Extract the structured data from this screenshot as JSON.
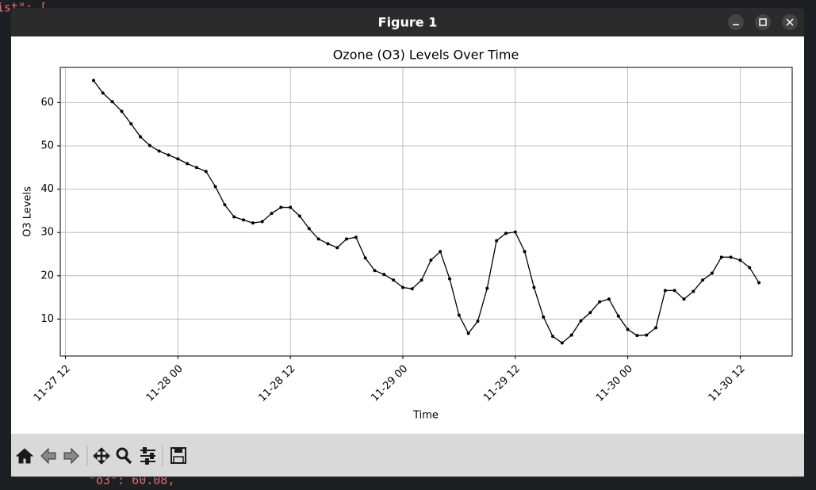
{
  "window": {
    "title": "Figure 1"
  },
  "background": {
    "code_top": "ist\": [",
    "code_bottom": "\"o3\": 60.08,"
  },
  "chart_data": {
    "type": "line",
    "title": "Ozone (O3) Levels Over Time",
    "x_label": "Time",
    "y_label": "O3 Levels",
    "color": "#000000",
    "grid": true,
    "x": [
      "11-27 15",
      "11-27 16",
      "11-27 17",
      "11-27 18",
      "11-27 19",
      "11-27 20",
      "11-27 21",
      "11-27 22",
      "11-27 23",
      "11-28 00",
      "11-28 01",
      "11-28 02",
      "11-28 03",
      "11-28 04",
      "11-28 05",
      "11-28 06",
      "11-28 07",
      "11-28 08",
      "11-28 09",
      "11-28 10",
      "11-28 11",
      "11-28 12",
      "11-28 13",
      "11-28 14",
      "11-28 15",
      "11-28 16",
      "11-28 17",
      "11-28 18",
      "11-28 19",
      "11-28 20",
      "11-28 21",
      "11-28 22",
      "11-28 23",
      "11-29 00",
      "11-29 01",
      "11-29 02",
      "11-29 03",
      "11-29 04",
      "11-29 05",
      "11-29 06",
      "11-29 07",
      "11-29 08",
      "11-29 09",
      "11-29 10",
      "11-29 11",
      "11-29 12",
      "11-29 13",
      "11-29 14",
      "11-29 15",
      "11-29 16",
      "11-29 17",
      "11-29 18",
      "11-29 19",
      "11-29 20",
      "11-29 21",
      "11-29 22",
      "11-29 23",
      "11-30 00",
      "11-30 01",
      "11-30 02",
      "11-30 03",
      "11-30 04",
      "11-30 05",
      "11-30 06",
      "11-30 07",
      "11-30 08",
      "11-30 09",
      "11-30 10",
      "11-30 11",
      "11-30 12",
      "11-30 13",
      "11-30 14"
    ],
    "values": [
      65.1,
      62.2,
      60.2,
      58.0,
      55.1,
      52.1,
      50.1,
      48.8,
      47.9,
      47.0,
      45.9,
      45.0,
      44.1,
      40.6,
      36.4,
      33.6,
      32.9,
      32.2,
      32.5,
      34.4,
      35.8,
      35.8,
      33.8,
      30.9,
      28.5,
      27.4,
      26.5,
      28.5,
      28.9,
      24.1,
      21.2,
      20.3,
      19.0,
      17.3,
      17.0,
      19.0,
      23.6,
      25.6,
      19.3,
      10.9,
      6.7,
      9.5,
      17.1,
      28.1,
      29.8,
      30.1,
      25.6,
      17.3,
      10.5,
      6.0,
      4.5,
      6.3,
      9.6,
      11.5,
      14.0,
      14.6,
      10.7,
      7.6,
      6.2,
      6.3,
      8.0,
      16.6,
      16.6,
      14.6,
      16.4,
      19.0,
      20.6,
      24.3,
      24.3,
      23.6,
      21.9,
      18.4
    ],
    "xlim": [
      "11-27 11:27",
      "11-30 17:33"
    ],
    "xticks": [
      "11-27 12",
      "11-28 00",
      "11-28 12",
      "11-29 00",
      "11-29 12",
      "11-30 00",
      "11-30 12"
    ],
    "ylim": [
      1.47,
      68.13
    ],
    "yticks": [
      10,
      20,
      30,
      40,
      50,
      60
    ]
  }
}
